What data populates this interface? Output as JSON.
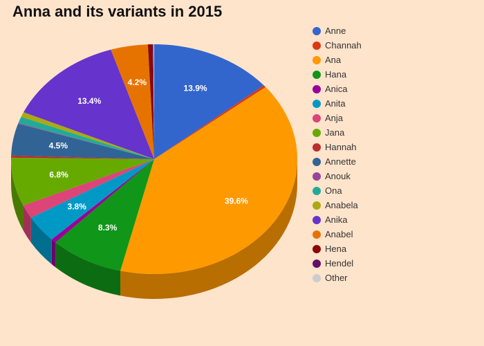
{
  "chart_data": {
    "type": "pie",
    "title": "Anna and its variants in 2015",
    "legend_position": "right",
    "slices": [
      {
        "name": "Anne",
        "value": 13.9,
        "label": "13.9%",
        "color": "#3366cc"
      },
      {
        "name": "Channah",
        "value": 0.3,
        "label": "",
        "color": "#dc3912"
      },
      {
        "name": "Ana",
        "value": 39.6,
        "label": "39.6%",
        "color": "#ff9900"
      },
      {
        "name": "Hana",
        "value": 8.3,
        "label": "8.3%",
        "color": "#109618"
      },
      {
        "name": "Anica",
        "value": 0.6,
        "label": "",
        "color": "#990099"
      },
      {
        "name": "Anita",
        "value": 3.8,
        "label": "3.8%",
        "color": "#0099c6"
      },
      {
        "name": "Anja",
        "value": 1.9,
        "label": "",
        "color": "#dd4477"
      },
      {
        "name": "Jana",
        "value": 6.8,
        "label": "6.8%",
        "color": "#66aa00"
      },
      {
        "name": "Hannah",
        "value": 0.3,
        "label": "",
        "color": "#b82e2e"
      },
      {
        "name": "Annette",
        "value": 4.5,
        "label": "4.5%",
        "color": "#316395"
      },
      {
        "name": "Anouk",
        "value": 0.1,
        "label": "",
        "color": "#994499"
      },
      {
        "name": "Ona",
        "value": 0.9,
        "label": "",
        "color": "#22aa99"
      },
      {
        "name": "Anabela",
        "value": 0.7,
        "label": "",
        "color": "#aaaa11"
      },
      {
        "name": "Anika",
        "value": 13.4,
        "label": "13.4%",
        "color": "#6633cc"
      },
      {
        "name": "Anabel",
        "value": 4.2,
        "label": "4.2%",
        "color": "#e67300"
      },
      {
        "name": "Hena",
        "value": 0.5,
        "label": "",
        "color": "#8b0707"
      },
      {
        "name": "Hendel",
        "value": 0.1,
        "label": "",
        "color": "#651067"
      },
      {
        "name": "Other",
        "value": 0.1,
        "label": "",
        "color": "#cccccc"
      }
    ]
  }
}
